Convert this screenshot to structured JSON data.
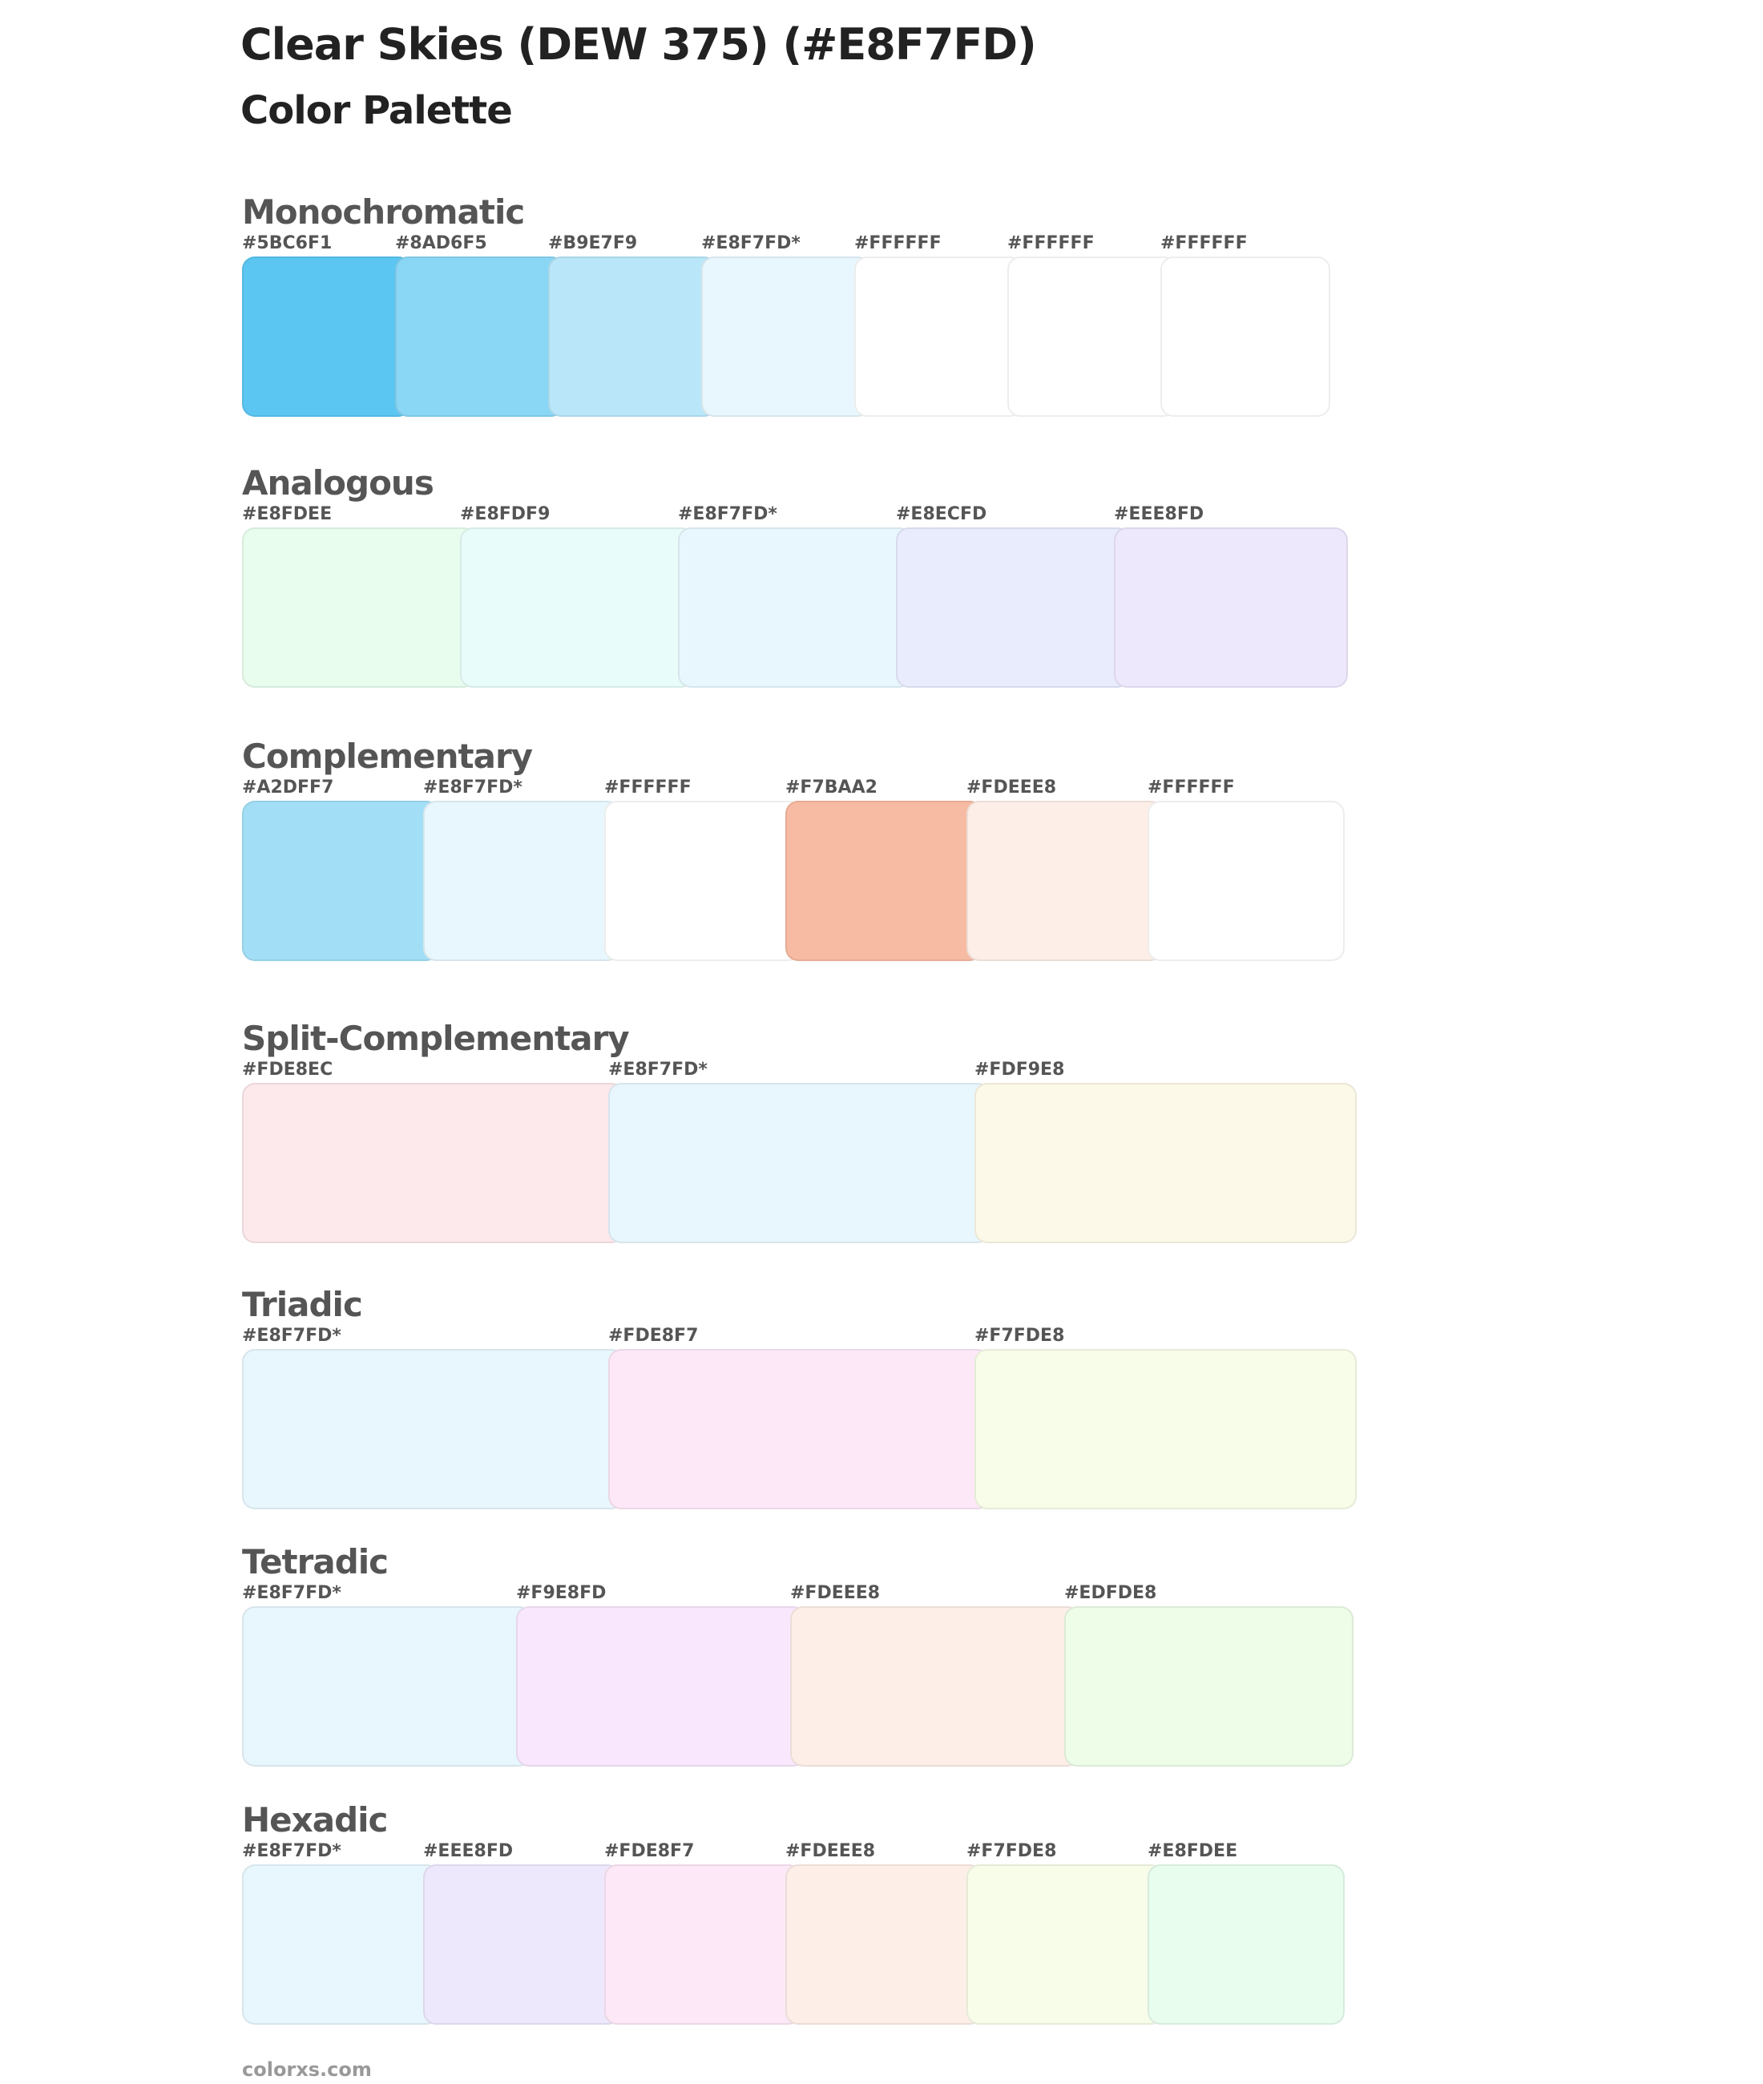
{
  "header": {
    "title": "Clear Skies (DEW 375) (#E8F7FD)",
    "subtitle": "Color Palette"
  },
  "sections": [
    {
      "name": "Monochromatic",
      "swatches": [
        {
          "label": "#5BC6F1",
          "color": "#5BC6F1"
        },
        {
          "label": "#8AD6F5",
          "color": "#8AD6F5"
        },
        {
          "label": "#B9E7F9",
          "color": "#B9E7F9"
        },
        {
          "label": "#E8F7FD*",
          "color": "#E8F7FD"
        },
        {
          "label": "#FFFFFF",
          "color": "#FFFFFF"
        },
        {
          "label": "#FFFFFF",
          "color": "#FFFFFF"
        },
        {
          "label": "#FFFFFF",
          "color": "#FFFFFF"
        }
      ]
    },
    {
      "name": "Analogous",
      "swatches": [
        {
          "label": "#E8FDEE",
          "color": "#E8FDEE"
        },
        {
          "label": "#E8FDF9",
          "color": "#E8FDF9"
        },
        {
          "label": "#E8F7FD*",
          "color": "#E8F7FD"
        },
        {
          "label": "#E8ECFD",
          "color": "#E8ECFD"
        },
        {
          "label": "#EEE8FD",
          "color": "#EEE8FD"
        }
      ]
    },
    {
      "name": "Complementary",
      "swatches": [
        {
          "label": "#A2DFF7",
          "color": "#A2DFF7"
        },
        {
          "label": "#E8F7FD*",
          "color": "#E8F7FD"
        },
        {
          "label": "#FFFFFF",
          "color": "#FFFFFF"
        },
        {
          "label": "#F7BAA2",
          "color": "#F7BAA2"
        },
        {
          "label": "#FDEEE8",
          "color": "#FDEEE8"
        },
        {
          "label": "#FFFFFF",
          "color": "#FFFFFF"
        }
      ]
    },
    {
      "name": "Split-Complementary",
      "swatches": [
        {
          "label": "#FDE8EC",
          "color": "#FDE8EC"
        },
        {
          "label": "#E8F7FD*",
          "color": "#E8F7FD"
        },
        {
          "label": "#FDF9E8",
          "color": "#FDF9E8"
        }
      ]
    },
    {
      "name": "Triadic",
      "swatches": [
        {
          "label": "#E8F7FD*",
          "color": "#E8F7FD"
        },
        {
          "label": "#FDE8F7",
          "color": "#FDE8F7"
        },
        {
          "label": "#F7FDE8",
          "color": "#F7FDE8"
        }
      ]
    },
    {
      "name": "Tetradic",
      "swatches": [
        {
          "label": "#E8F7FD*",
          "color": "#E8F7FD"
        },
        {
          "label": "#F9E8FD",
          "color": "#F9E8FD"
        },
        {
          "label": "#FDEEE8",
          "color": "#FDEEE8"
        },
        {
          "label": "#EDFDE8",
          "color": "#EDFDE8"
        }
      ]
    },
    {
      "name": "Hexadic",
      "swatches": [
        {
          "label": "#E8F7FD*",
          "color": "#E8F7FD"
        },
        {
          "label": "#EEE8FD",
          "color": "#EEE8FD"
        },
        {
          "label": "#FDE8F7",
          "color": "#FDE8F7"
        },
        {
          "label": "#FDEEE8",
          "color": "#FDEEE8"
        },
        {
          "label": "#F7FDE8",
          "color": "#F7FDE8"
        },
        {
          "label": "#E8FDEE",
          "color": "#E8FDEE"
        }
      ]
    }
  ],
  "footer": {
    "text": "colorxs.com"
  }
}
